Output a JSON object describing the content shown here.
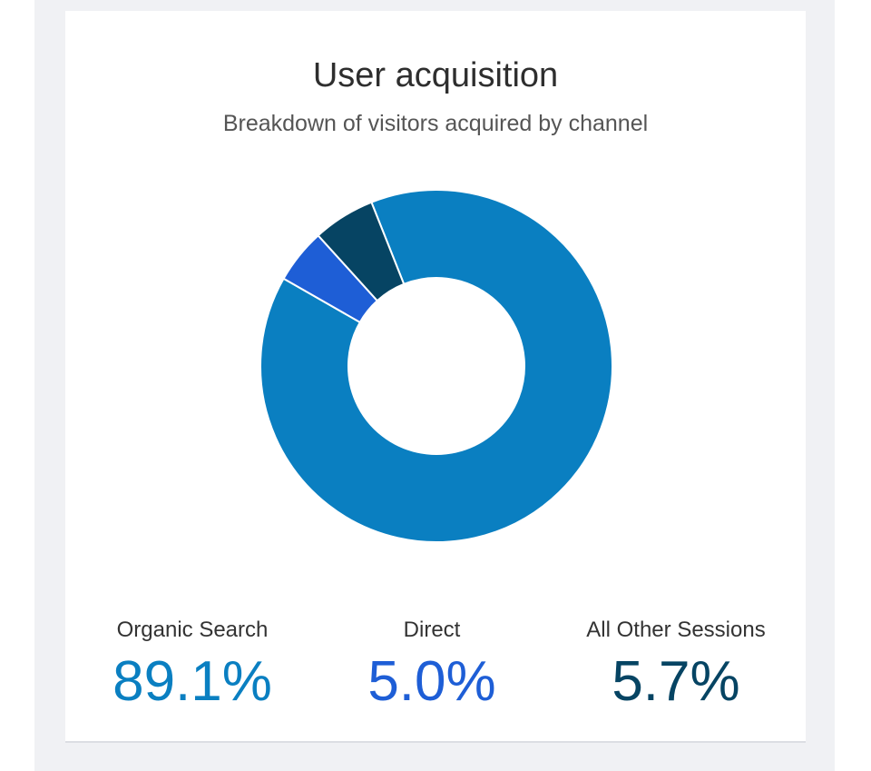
{
  "chart_data": {
    "type": "pie",
    "title": "User acquisition",
    "subtitle": "Breakdown of visitors acquired by channel",
    "donut": true,
    "categories": [
      "Organic Search",
      "Direct",
      "All Other Sessions"
    ],
    "values": [
      89.1,
      5.0,
      5.7
    ],
    "value_labels": [
      "89.1%",
      "5.0%",
      "5.7%"
    ],
    "colors": [
      "#0a7fc1",
      "#1e5ed6",
      "#064463"
    ],
    "legend": "bottom"
  }
}
